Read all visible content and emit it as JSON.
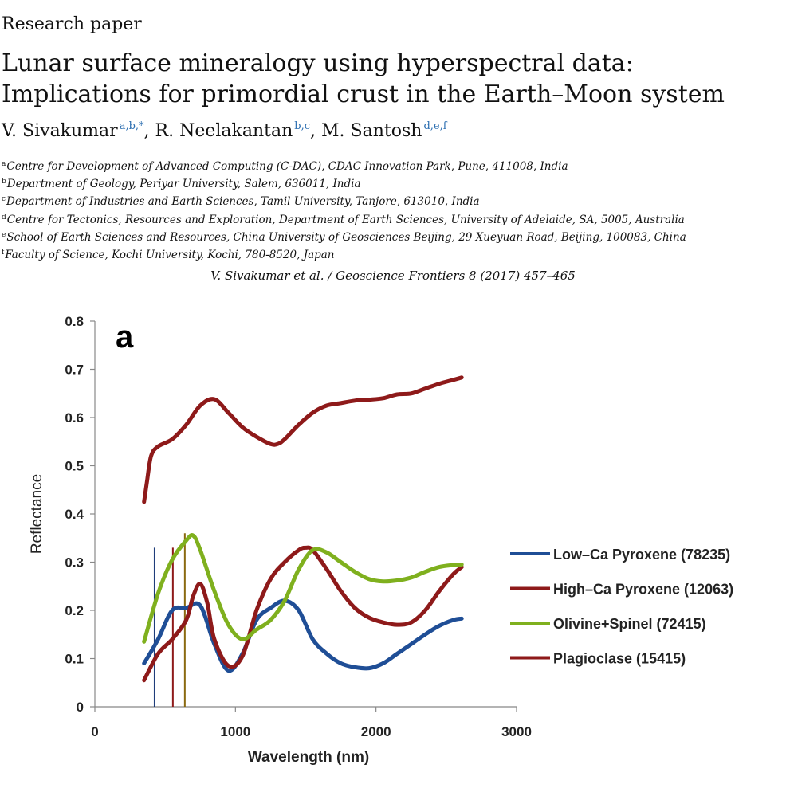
{
  "header": {
    "section_label": "Research paper",
    "title": "Lunar surface mineralogy using hyperspectral data: Implications for primordial crust in the Earth–Moon system"
  },
  "authors": [
    {
      "name": "V. Sivakumar",
      "sup": "a,b,*"
    },
    {
      "name": "R. Neelakantan",
      "sup": "b,c"
    },
    {
      "name": "M. Santosh",
      "sup": "d,e,f"
    }
  ],
  "affiliations": [
    {
      "mark": "a",
      "text": "Centre for Development of Advanced Computing (C-DAC), CDAC Innovation Park, Pune, 411008, India"
    },
    {
      "mark": "b",
      "text": "Department of Geology, Periyar University, Salem, 636011, India"
    },
    {
      "mark": "c",
      "text": "Department of Industries and Earth Sciences, Tamil University, Tanjore, 613010, India"
    },
    {
      "mark": "d",
      "text": "Centre for Tectonics, Resources and Exploration, Department of Earth Sciences, University of Adelaide, SA, 5005, Australia"
    },
    {
      "mark": "e",
      "text": "School of Earth Sciences and Resources, China University of Geosciences Beijing, 29 Xueyuan Road, Beijing, 100083, China"
    },
    {
      "mark": "f",
      "text": "Faculty of Science, Kochi University, Kochi, 780-8520, Japan"
    }
  ],
  "journal_line": "V. Sivakumar et al. / Geoscience Frontiers 8 (2017) 457–465",
  "chart_data": {
    "type": "line",
    "panel_label": "a",
    "xlabel": "Wavelength (nm)",
    "ylabel": "Reflectance",
    "xlim": [
      0,
      3000
    ],
    "ylim": [
      0,
      0.8
    ],
    "xticks": [
      0,
      1000,
      2000,
      3000
    ],
    "yticks": [
      0,
      0.1,
      0.2,
      0.3,
      0.4,
      0.5,
      0.6,
      0.7,
      0.8
    ],
    "xtick_labels": [
      "0",
      "1000",
      "2000",
      "3000"
    ],
    "ytick_labels": [
      "0",
      "0.1",
      "0.2",
      "0.3",
      "0.4",
      "0.5",
      "0.6",
      "0.7",
      "0.8"
    ],
    "grid": false,
    "legend_position": "right",
    "series": [
      {
        "name": "Low–Ca Pyroxene (78235)",
        "color": "#1f4e96",
        "x": [
          350,
          450,
          550,
          650,
          750,
          850,
          950,
          1050,
          1150,
          1250,
          1350,
          1450,
          1550,
          1650,
          1750,
          1850,
          1950,
          2050,
          2150,
          2250,
          2350,
          2450,
          2550,
          2610
        ],
        "y": [
          0.09,
          0.14,
          0.2,
          0.205,
          0.21,
          0.13,
          0.075,
          0.11,
          0.18,
          0.205,
          0.22,
          0.2,
          0.14,
          0.11,
          0.09,
          0.082,
          0.08,
          0.09,
          0.11,
          0.13,
          0.15,
          0.168,
          0.18,
          0.183
        ]
      },
      {
        "name": "High–Ca Pyroxene (12063)",
        "color": "#8e1a1a",
        "x": [
          350,
          450,
          550,
          650,
          700,
          750,
          800,
          850,
          950,
          1050,
          1150,
          1250,
          1350,
          1450,
          1500,
          1550,
          1650,
          1750,
          1850,
          1950,
          2050,
          2150,
          2250,
          2350,
          2450,
          2550,
          2610
        ],
        "y": [
          0.055,
          0.11,
          0.14,
          0.18,
          0.23,
          0.255,
          0.215,
          0.14,
          0.085,
          0.105,
          0.2,
          0.265,
          0.3,
          0.325,
          0.33,
          0.325,
          0.285,
          0.24,
          0.205,
          0.185,
          0.175,
          0.17,
          0.175,
          0.2,
          0.24,
          0.275,
          0.29
        ]
      },
      {
        "name": "Olivine+Spinel (72415)",
        "color": "#7fb01e",
        "x": [
          350,
          450,
          550,
          650,
          700,
          750,
          850,
          950,
          1050,
          1150,
          1250,
          1350,
          1450,
          1550,
          1650,
          1750,
          1850,
          1950,
          2050,
          2150,
          2250,
          2350,
          2450,
          2550,
          2610
        ],
        "y": [
          0.135,
          0.235,
          0.305,
          0.345,
          0.355,
          0.325,
          0.24,
          0.17,
          0.14,
          0.16,
          0.18,
          0.22,
          0.285,
          0.325,
          0.32,
          0.3,
          0.28,
          0.265,
          0.26,
          0.262,
          0.268,
          0.28,
          0.29,
          0.294,
          0.295
        ]
      },
      {
        "name": "Plagioclase (15415)",
        "color": "#8e1a1a",
        "x": [
          350,
          370,
          400,
          450,
          550,
          650,
          750,
          850,
          950,
          1050,
          1150,
          1250,
          1300,
          1350,
          1450,
          1550,
          1650,
          1750,
          1850,
          1950,
          2050,
          2150,
          2250,
          2350,
          2450,
          2550,
          2610
        ],
        "y": [
          0.425,
          0.465,
          0.52,
          0.54,
          0.555,
          0.585,
          0.625,
          0.638,
          0.61,
          0.58,
          0.56,
          0.545,
          0.545,
          0.555,
          0.585,
          0.61,
          0.625,
          0.63,
          0.635,
          0.637,
          0.64,
          0.648,
          0.65,
          0.66,
          0.67,
          0.678,
          0.683
        ]
      }
    ],
    "reference_lines": [
      {
        "x": 425,
        "y_top": 0.33,
        "color": "#1f3d7a"
      },
      {
        "x": 555,
        "y_top": 0.33,
        "color": "#8e1a1a"
      },
      {
        "x": 640,
        "y_top": 0.36,
        "color": "#8a6a10"
      }
    ]
  }
}
